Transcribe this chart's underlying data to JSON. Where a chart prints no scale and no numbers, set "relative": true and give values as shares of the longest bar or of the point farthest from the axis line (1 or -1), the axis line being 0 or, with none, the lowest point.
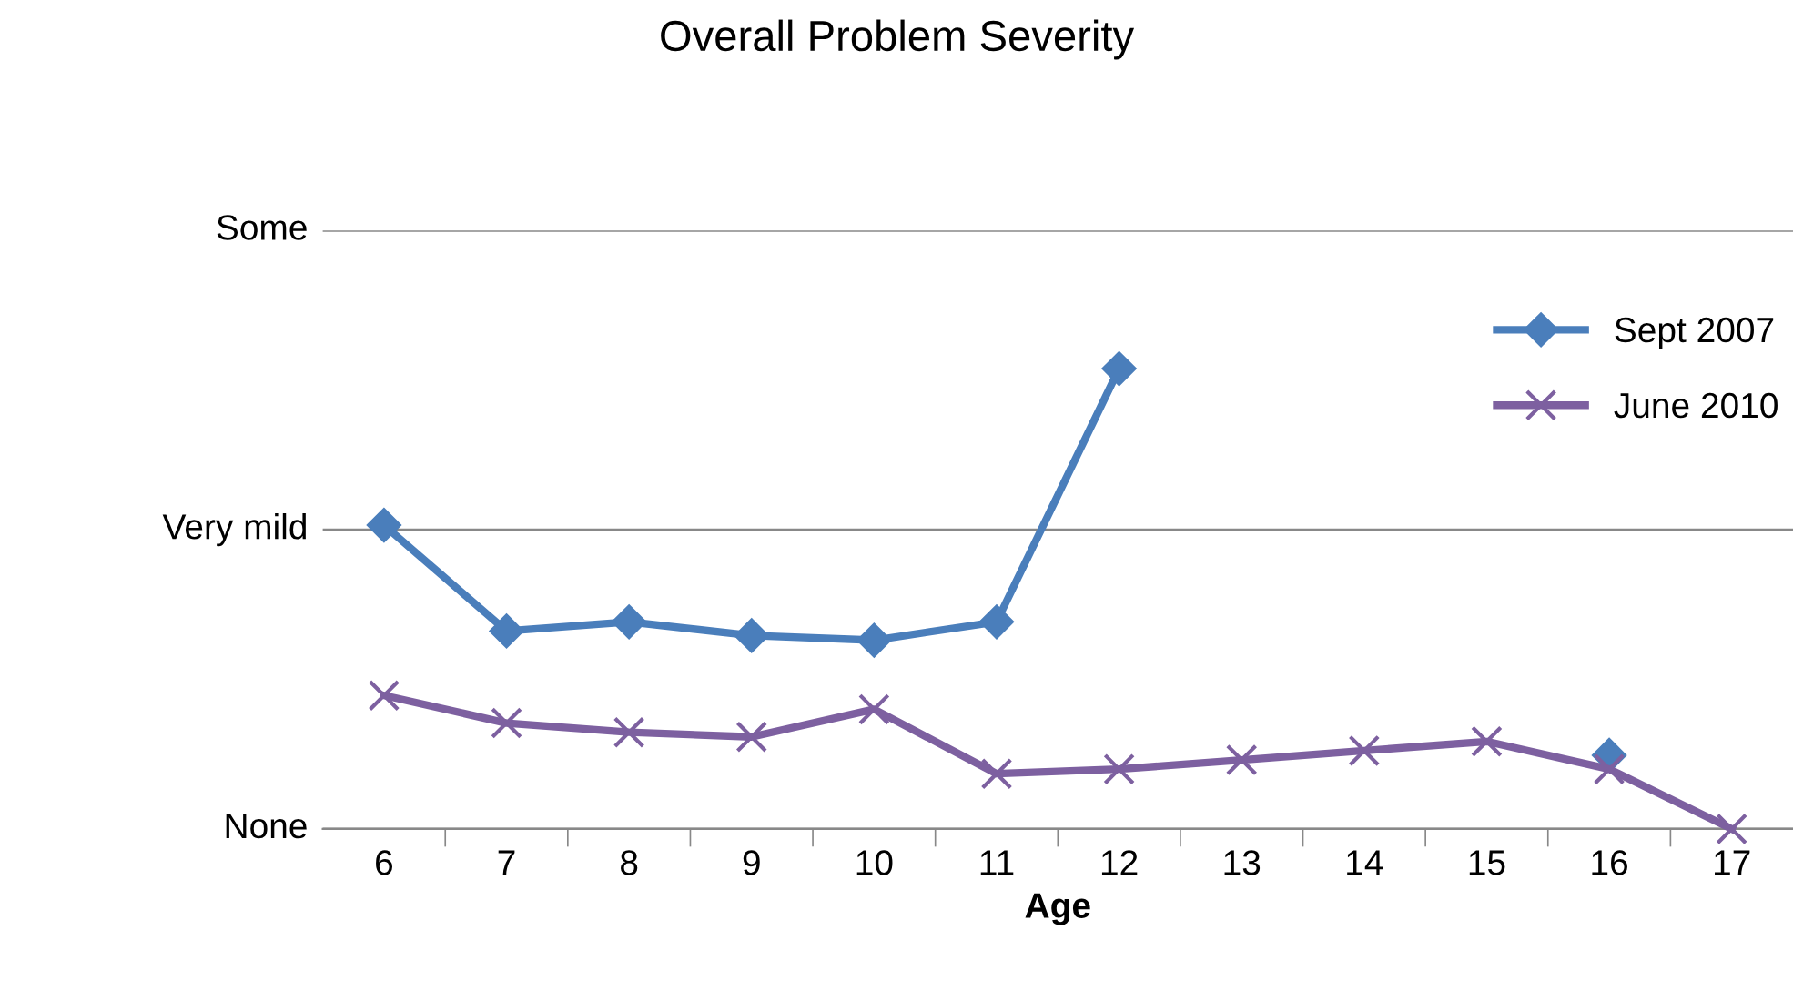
{
  "chart_data": {
    "type": "line",
    "title": "Overall Problem Severity",
    "xlabel": "Age",
    "relative": true,
    "categories": [
      "6",
      "7",
      "8",
      "9",
      "10",
      "11",
      "12",
      "13",
      "14",
      "15",
      "16",
      "17"
    ],
    "series": [
      {
        "name": "Sept 2007",
        "color": "#4a7ebb",
        "marker": "diamond",
        "values": [
          0.66,
          0.43,
          0.45,
          0.42,
          0.41,
          0.45,
          1,
          null,
          null,
          null,
          0.16,
          null
        ]
      },
      {
        "name": "June 2010",
        "color": "#7d60a0",
        "marker": "cross",
        "values": [
          0.29,
          0.23,
          0.21,
          0.2,
          0.26,
          0.12,
          0.13,
          0.15,
          0.17,
          0.19,
          0.13,
          0
        ]
      }
    ],
    "ref_lines": [
      {
        "axis": "y",
        "value": 0,
        "label": "None"
      },
      {
        "axis": "y",
        "value": 0.65,
        "label": "Very mild"
      },
      {
        "axis": "y",
        "value": 1.3,
        "label": "Some"
      }
    ],
    "legend": "top right",
    "line_style": "solid"
  }
}
